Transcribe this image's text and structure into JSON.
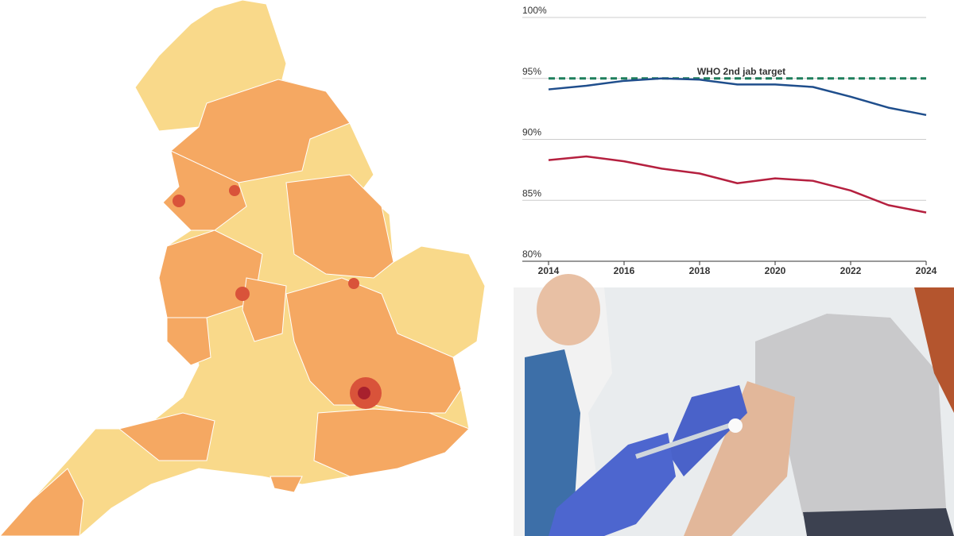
{
  "chart_data": {
    "type": "line",
    "x": [
      2014,
      2015,
      2016,
      2017,
      2018,
      2019,
      2020,
      2021,
      2022,
      2023,
      2024
    ],
    "series": [
      {
        "color": "#1f4e8c",
        "values": [
          94.1,
          94.4,
          94.8,
          95.0,
          94.9,
          94.5,
          94.5,
          94.3,
          93.5,
          92.6,
          92.0
        ]
      },
      {
        "color": "#b5203f",
        "values": [
          88.3,
          88.6,
          88.2,
          87.6,
          87.2,
          86.4,
          86.8,
          86.6,
          85.8,
          84.6,
          84.0
        ]
      }
    ],
    "target": {
      "value": 95,
      "label": "WHO 2nd jab target",
      "color": "#1e7f5c"
    },
    "xlim": [
      2014,
      2024
    ],
    "xticks": [
      2014,
      2016,
      2018,
      2020,
      2022,
      2024
    ],
    "ylim": [
      80,
      100
    ],
    "yticks": [
      {
        "value": 80,
        "label": "80%"
      },
      {
        "value": 85,
        "label": "85%"
      },
      {
        "value": 90,
        "label": "90%"
      },
      {
        "value": 95,
        "label": "95%"
      },
      {
        "value": 100,
        "label": "100%"
      }
    ],
    "grid": true
  }
}
